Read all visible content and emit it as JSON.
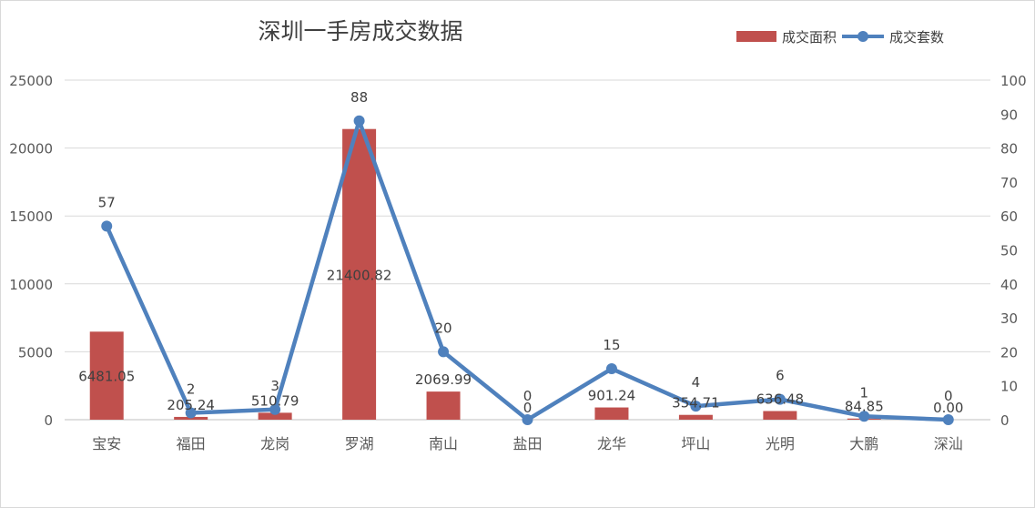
{
  "chart_data": {
    "type": "bar",
    "title": "深圳一手房成交数据",
    "categories": [
      "宝安",
      "福田",
      "龙岗",
      "罗湖",
      "南山",
      "盐田",
      "龙华",
      "坪山",
      "光明",
      "大鹏",
      "深汕"
    ],
    "series": [
      {
        "name": "成交面积",
        "type": "bar",
        "axis": "left",
        "color": "#c0504d",
        "values": [
          6481.05,
          205.24,
          510.79,
          21400.82,
          2069.99,
          0,
          901.24,
          354.71,
          636.48,
          84.85,
          0.0
        ],
        "labels": [
          "6481.05",
          "205.24",
          "510.79",
          "21400.82",
          "2069.99",
          "0",
          "901.24",
          "354.71",
          "636.48",
          "84.85",
          "0.00"
        ]
      },
      {
        "name": "成交套数",
        "type": "line",
        "axis": "right",
        "color": "#4f81bd",
        "values": [
          57,
          2,
          3,
          88,
          20,
          0,
          15,
          4,
          6,
          1,
          0
        ],
        "labels": [
          "57",
          "2",
          "3",
          "88",
          "20",
          "0",
          "15",
          "4",
          "6",
          "1",
          "0"
        ]
      }
    ],
    "y_left": {
      "min": 0,
      "max": 25000,
      "ticks": [
        "0",
        "5000",
        "10000",
        "15000",
        "20000",
        "25000"
      ]
    },
    "y_right": {
      "min": 0,
      "max": 100,
      "ticks": [
        "0",
        "10",
        "20",
        "30",
        "40",
        "50",
        "60",
        "70",
        "80",
        "90",
        "100"
      ]
    },
    "grid": true,
    "legend": "top-right"
  }
}
